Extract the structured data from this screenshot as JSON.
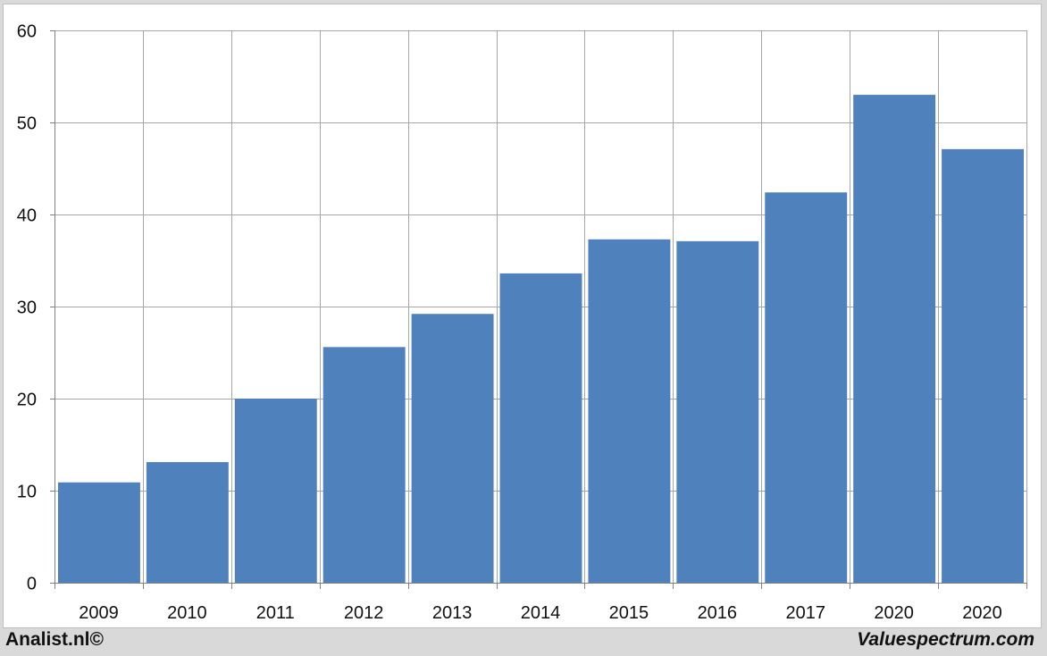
{
  "chart_data": {
    "type": "bar",
    "categories": [
      "2009",
      "2010",
      "2011",
      "2012",
      "2013",
      "2014",
      "2015",
      "2016",
      "2017",
      "2020",
      "2020"
    ],
    "values": [
      10.9,
      13.1,
      20.0,
      25.6,
      29.2,
      33.6,
      37.3,
      37.1,
      42.4,
      53.0,
      47.1
    ],
    "title": "",
    "xlabel": "",
    "ylabel": "",
    "ylim": [
      0,
      60
    ],
    "yticks": [
      "0",
      "10",
      "20",
      "30",
      "40",
      "50",
      "60"
    ],
    "grid": true,
    "legend": "none",
    "bar_color": "#4f81bd",
    "grid_color": "#a6a6a6"
  },
  "footer": {
    "left_text": "Analist.nl©",
    "right_text": "Valuespectrum.com"
  }
}
